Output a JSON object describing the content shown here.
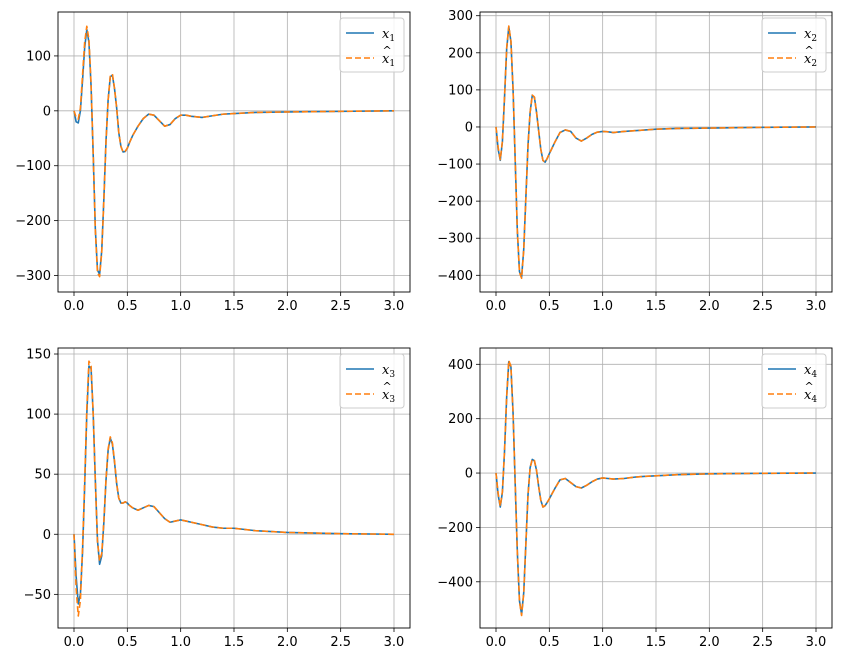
{
  "colors": {
    "true": "#1f77b4",
    "estimate": "#ff7f0e",
    "grid": "#b0b0b0"
  },
  "chart_data": [
    {
      "type": "line",
      "xlim": [
        -0.15,
        3.15
      ],
      "ylim": [
        -330,
        180
      ],
      "xticks": [
        0.0,
        0.5,
        1.0,
        1.5,
        2.0,
        2.5,
        3.0
      ],
      "xtick_labels": [
        "0.0",
        "0.5",
        "1.0",
        "1.5",
        "2.0",
        "2.5",
        "3.0"
      ],
      "yticks": [
        -300,
        -200,
        -100,
        0,
        100
      ],
      "ytick_labels": [
        "−300",
        "−200",
        "−100",
        "0",
        "100"
      ],
      "grid": true,
      "legend": "top-right",
      "legend_entries": [
        {
          "name": "x",
          "sub": "1",
          "hat": false
        },
        {
          "name": "x",
          "sub": "1",
          "hat": true
        }
      ],
      "series": [
        {
          "name": "x1",
          "x": [
            0,
            0.02,
            0.04,
            0.06,
            0.08,
            0.1,
            0.12,
            0.14,
            0.16,
            0.18,
            0.2,
            0.22,
            0.24,
            0.26,
            0.28,
            0.3,
            0.32,
            0.34,
            0.36,
            0.38,
            0.4,
            0.42,
            0.44,
            0.46,
            0.48,
            0.5,
            0.52,
            0.55,
            0.6,
            0.65,
            0.7,
            0.75,
            0.8,
            0.85,
            0.9,
            0.95,
            1.0,
            1.05,
            1.1,
            1.2,
            1.3,
            1.4,
            1.5,
            1.7,
            2.0,
            2.5,
            3.0
          ],
          "y": [
            0,
            -20,
            -22,
            0,
            55,
            115,
            148,
            125,
            45,
            -80,
            -215,
            -290,
            -298,
            -255,
            -160,
            -55,
            20,
            62,
            65,
            40,
            5,
            -40,
            -65,
            -75,
            -74,
            -68,
            -58,
            -45,
            -28,
            -14,
            -6,
            -8,
            -18,
            -28,
            -25,
            -14,
            -8,
            -8,
            -10,
            -12,
            -9,
            -6,
            -5,
            -3,
            -2,
            -1,
            0
          ]
        },
        {
          "name": "x1_hat",
          "x": [
            0,
            0.02,
            0.04,
            0.06,
            0.08,
            0.1,
            0.12,
            0.14,
            0.16,
            0.18,
            0.2,
            0.22,
            0.24,
            0.26,
            0.28,
            0.3,
            0.32,
            0.34,
            0.36,
            0.38,
            0.4,
            0.42,
            0.44,
            0.46,
            0.48,
            0.5,
            0.52,
            0.55,
            0.6,
            0.65,
            0.7,
            0.75,
            0.8,
            0.85,
            0.9,
            0.95,
            1.0,
            1.05,
            1.1,
            1.2,
            1.3,
            1.4,
            1.5,
            1.7,
            2.0,
            2.5,
            3.0
          ],
          "y": [
            0,
            -12,
            -15,
            5,
            65,
            125,
            154,
            130,
            50,
            -78,
            -218,
            -295,
            -302,
            -258,
            -162,
            -56,
            20,
            63,
            67,
            41,
            5,
            -40,
            -65,
            -75,
            -74,
            -68,
            -58,
            -45,
            -28,
            -14,
            -6,
            -8,
            -18,
            -28,
            -25,
            -14,
            -8,
            -8,
            -10,
            -12,
            -9,
            -6,
            -5,
            -3,
            -2,
            -1,
            0
          ]
        }
      ]
    },
    {
      "type": "line",
      "xlim": [
        -0.15,
        3.15
      ],
      "ylim": [
        -445,
        310
      ],
      "xticks": [
        0.0,
        0.5,
        1.0,
        1.5,
        2.0,
        2.5,
        3.0
      ],
      "xtick_labels": [
        "0.0",
        "0.5",
        "1.0",
        "1.5",
        "2.0",
        "2.5",
        "3.0"
      ],
      "yticks": [
        -400,
        -300,
        -200,
        -100,
        0,
        100,
        200,
        300
      ],
      "ytick_labels": [
        "−400",
        "−300",
        "−200",
        "−100",
        "0",
        "100",
        "200",
        "300"
      ],
      "grid": true,
      "legend": "top-right",
      "legend_entries": [
        {
          "name": "x",
          "sub": "2",
          "hat": false
        },
        {
          "name": "x",
          "sub": "2",
          "hat": true
        }
      ],
      "series": [
        {
          "name": "x2",
          "x": [
            0,
            0.02,
            0.04,
            0.06,
            0.08,
            0.1,
            0.12,
            0.14,
            0.16,
            0.18,
            0.2,
            0.22,
            0.24,
            0.26,
            0.28,
            0.3,
            0.32,
            0.34,
            0.36,
            0.38,
            0.4,
            0.42,
            0.44,
            0.46,
            0.48,
            0.5,
            0.52,
            0.55,
            0.6,
            0.65,
            0.7,
            0.75,
            0.8,
            0.85,
            0.9,
            0.95,
            1.0,
            1.05,
            1.1,
            1.2,
            1.3,
            1.4,
            1.5,
            1.7,
            2.0,
            2.5,
            3.0
          ],
          "y": [
            0,
            -60,
            -90,
            -40,
            80,
            210,
            270,
            230,
            100,
            -90,
            -280,
            -390,
            -405,
            -330,
            -190,
            -50,
            40,
            85,
            80,
            40,
            -10,
            -60,
            -90,
            -95,
            -85,
            -72,
            -60,
            -42,
            -15,
            -8,
            -12,
            -30,
            -38,
            -30,
            -20,
            -14,
            -12,
            -13,
            -15,
            -12,
            -10,
            -8,
            -6,
            -4,
            -3,
            -1,
            0
          ]
        },
        {
          "name": "x2_hat",
          "x": [
            0,
            0.02,
            0.04,
            0.06,
            0.08,
            0.1,
            0.12,
            0.14,
            0.16,
            0.18,
            0.2,
            0.22,
            0.24,
            0.26,
            0.28,
            0.3,
            0.32,
            0.34,
            0.36,
            0.38,
            0.4,
            0.42,
            0.44,
            0.46,
            0.48,
            0.5,
            0.52,
            0.55,
            0.6,
            0.65,
            0.7,
            0.75,
            0.8,
            0.85,
            0.9,
            0.95,
            1.0,
            1.05,
            1.1,
            1.2,
            1.3,
            1.4,
            1.5,
            1.7,
            2.0,
            2.5,
            3.0
          ],
          "y": [
            0,
            -55,
            -88,
            -38,
            82,
            213,
            272,
            232,
            102,
            -89,
            -281,
            -392,
            -408,
            -332,
            -191,
            -50,
            40,
            86,
            81,
            40,
            -10,
            -60,
            -90,
            -95,
            -85,
            -72,
            -60,
            -42,
            -15,
            -8,
            -12,
            -30,
            -38,
            -30,
            -20,
            -14,
            -12,
            -13,
            -15,
            -12,
            -10,
            -8,
            -6,
            -4,
            -3,
            -1,
            0
          ]
        }
      ]
    },
    {
      "type": "line",
      "xlim": [
        -0.15,
        3.15
      ],
      "ylim": [
        -78,
        155
      ],
      "xticks": [
        0.0,
        0.5,
        1.0,
        1.5,
        2.0,
        2.5,
        3.0
      ],
      "xtick_labels": [
        "0.0",
        "0.5",
        "1.0",
        "1.5",
        "2.0",
        "2.5",
        "3.0"
      ],
      "yticks": [
        -50,
        0,
        50,
        100,
        150
      ],
      "ytick_labels": [
        "−50",
        "0",
        "50",
        "100",
        "150"
      ],
      "grid": true,
      "legend": "top-right",
      "legend_entries": [
        {
          "name": "x",
          "sub": "3",
          "hat": false
        },
        {
          "name": "x",
          "sub": "3",
          "hat": true
        }
      ],
      "series": [
        {
          "name": "x3",
          "x": [
            0,
            0.02,
            0.04,
            0.06,
            0.08,
            0.1,
            0.12,
            0.14,
            0.16,
            0.18,
            0.2,
            0.22,
            0.24,
            0.26,
            0.28,
            0.3,
            0.32,
            0.34,
            0.36,
            0.38,
            0.4,
            0.42,
            0.44,
            0.46,
            0.48,
            0.5,
            0.52,
            0.55,
            0.6,
            0.65,
            0.7,
            0.75,
            0.8,
            0.85,
            0.9,
            0.95,
            1.0,
            1.05,
            1.1,
            1.2,
            1.3,
            1.4,
            1.5,
            1.7,
            2.0,
            2.5,
            3.0
          ],
          "y": [
            0,
            -35,
            -58,
            -50,
            -15,
            40,
            100,
            140,
            138,
            100,
            45,
            -5,
            -25,
            -18,
            10,
            45,
            70,
            80,
            75,
            60,
            42,
            30,
            26,
            26,
            27,
            26,
            24,
            22,
            20,
            22,
            24,
            23,
            18,
            13,
            10,
            11,
            12,
            11,
            10,
            8,
            6,
            5,
            5,
            3,
            1.5,
            0.5,
            0
          ]
        },
        {
          "name": "x3_hat",
          "x": [
            0,
            0.02,
            0.04,
            0.06,
            0.08,
            0.1,
            0.12,
            0.14,
            0.16,
            0.18,
            0.2,
            0.22,
            0.24,
            0.26,
            0.28,
            0.3,
            0.32,
            0.34,
            0.36,
            0.38,
            0.4,
            0.42,
            0.44,
            0.46,
            0.48,
            0.5,
            0.52,
            0.55,
            0.6,
            0.65,
            0.7,
            0.75,
            0.8,
            0.85,
            0.9,
            0.95,
            1.0,
            1.05,
            1.1,
            1.2,
            1.3,
            1.4,
            1.5,
            1.7,
            2.0,
            2.5,
            3.0
          ],
          "y": [
            0,
            -45,
            -68,
            -55,
            -12,
            44,
            104,
            144,
            140,
            100,
            44,
            -6,
            -22,
            -16,
            11,
            46,
            71,
            81,
            76,
            61,
            42,
            30,
            26,
            26,
            27,
            26,
            24,
            22,
            20,
            22,
            24,
            23,
            18,
            13,
            10,
            11,
            12,
            11,
            10,
            8,
            6,
            5,
            5,
            3,
            1.5,
            0.5,
            0
          ]
        }
      ]
    },
    {
      "type": "line",
      "xlim": [
        -0.15,
        3.15
      ],
      "ylim": [
        -570,
        460
      ],
      "xticks": [
        0.0,
        0.5,
        1.0,
        1.5,
        2.0,
        2.5,
        3.0
      ],
      "xtick_labels": [
        "0.0",
        "0.5",
        "1.0",
        "1.5",
        "2.0",
        "2.5",
        "3.0"
      ],
      "yticks": [
        -400,
        -200,
        0,
        200,
        400
      ],
      "ytick_labels": [
        "−400",
        "−200",
        "0",
        "200",
        "400"
      ],
      "grid": true,
      "legend": "top-right",
      "legend_entries": [
        {
          "name": "x",
          "sub": "4",
          "hat": false
        },
        {
          "name": "x",
          "sub": "4",
          "hat": true
        }
      ],
      "series": [
        {
          "name": "x4",
          "x": [
            0,
            0.02,
            0.04,
            0.06,
            0.08,
            0.1,
            0.12,
            0.14,
            0.16,
            0.18,
            0.2,
            0.22,
            0.24,
            0.26,
            0.28,
            0.3,
            0.32,
            0.34,
            0.36,
            0.38,
            0.4,
            0.42,
            0.44,
            0.46,
            0.48,
            0.5,
            0.52,
            0.55,
            0.6,
            0.65,
            0.7,
            0.75,
            0.8,
            0.85,
            0.9,
            0.95,
            1.0,
            1.05,
            1.1,
            1.2,
            1.3,
            1.4,
            1.5,
            1.7,
            2.0,
            2.5,
            3.0
          ],
          "y": [
            0,
            -80,
            -125,
            -70,
            80,
            280,
            410,
            390,
            220,
            -40,
            -290,
            -470,
            -520,
            -440,
            -260,
            -80,
            20,
            50,
            45,
            10,
            -50,
            -100,
            -125,
            -120,
            -108,
            -95,
            -80,
            -58,
            -25,
            -20,
            -35,
            -50,
            -55,
            -45,
            -32,
            -22,
            -18,
            -20,
            -22,
            -20,
            -15,
            -12,
            -10,
            -6,
            -3,
            -1,
            0
          ]
        },
        {
          "name": "x4_hat",
          "x": [
            0,
            0.02,
            0.04,
            0.06,
            0.08,
            0.1,
            0.12,
            0.14,
            0.16,
            0.18,
            0.2,
            0.22,
            0.24,
            0.26,
            0.28,
            0.3,
            0.32,
            0.34,
            0.36,
            0.38,
            0.4,
            0.42,
            0.44,
            0.46,
            0.48,
            0.5,
            0.52,
            0.55,
            0.6,
            0.65,
            0.7,
            0.75,
            0.8,
            0.85,
            0.9,
            0.95,
            1.0,
            1.05,
            1.1,
            1.2,
            1.3,
            1.4,
            1.5,
            1.7,
            2.0,
            2.5,
            3.0
          ],
          "y": [
            0,
            -75,
            -122,
            -68,
            83,
            283,
            414,
            393,
            222,
            -40,
            -292,
            -472,
            -524,
            -442,
            -261,
            -80,
            20,
            51,
            46,
            10,
            -50,
            -100,
            -125,
            -120,
            -108,
            -95,
            -80,
            -58,
            -25,
            -20,
            -35,
            -50,
            -55,
            -45,
            -32,
            -22,
            -18,
            -20,
            -22,
            -20,
            -15,
            -12,
            -10,
            -6,
            -3,
            -1,
            0
          ]
        }
      ]
    }
  ]
}
